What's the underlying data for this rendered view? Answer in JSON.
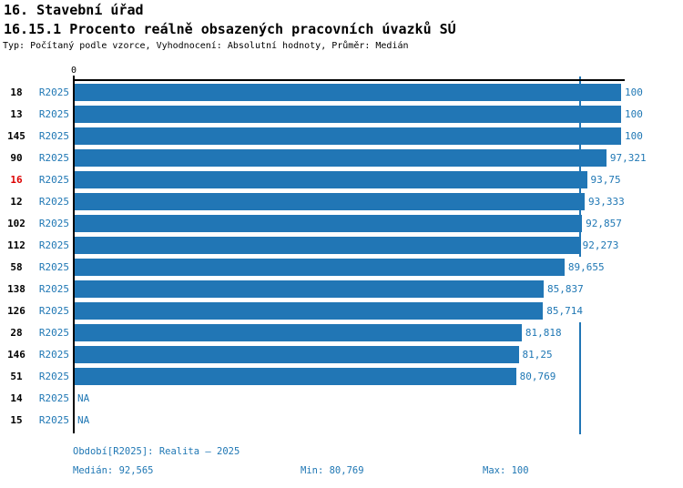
{
  "header": {
    "title1": "16. Stavební úřad",
    "title2": "16.15.1 Procento reálně obsazených pracovních úvazků SÚ",
    "info": "Typ: Počítaný podle vzorce, Vyhodnocení: Absolutní hodnoty, Průměr: Medián"
  },
  "chart_data": {
    "type": "bar",
    "orientation": "horizontal",
    "axis_origin_label": "0",
    "xlim": [
      0,
      100
    ],
    "grid": false,
    "period_label": "R2025",
    "categories": [
      "18",
      "13",
      "145",
      "90",
      "16",
      "12",
      "102",
      "112",
      "58",
      "138",
      "126",
      "28",
      "146",
      "51",
      "14",
      "15"
    ],
    "values": [
      100,
      100,
      100,
      97.321,
      93.75,
      93.333,
      92.857,
      92.273,
      89.655,
      85.837,
      85.714,
      81.818,
      81.25,
      80.769,
      null,
      null
    ],
    "value_labels": [
      "100",
      "100",
      "100",
      "97,321",
      "93,75",
      "93,333",
      "92,857",
      "92,273",
      "89,655",
      "85,837",
      "85,714",
      "81,818",
      "81,25",
      "80,769",
      "NA",
      "NA"
    ],
    "na_label": "NA",
    "highlighted_category": "16",
    "median_value": 92.565,
    "colors": {
      "bar": "#2176b5",
      "median_line": "#2176b5",
      "label_blue": "#1f77b4",
      "highlight_red": "#dd0000",
      "axis_black": "#000000"
    }
  },
  "footer": {
    "period": "Období[R2025]: Realita – 2025",
    "median": "Medián: 92,565",
    "min": "Min: 80,769",
    "max": "Max: 100"
  }
}
